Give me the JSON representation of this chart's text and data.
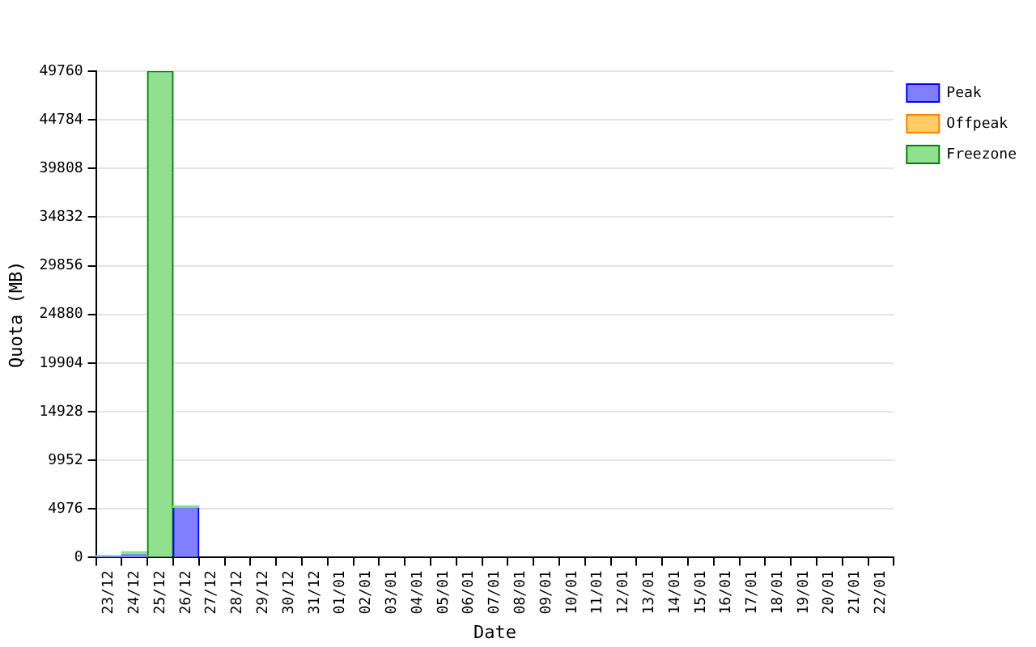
{
  "chart_data": {
    "type": "bar",
    "stacked": true,
    "xlabel": "Date",
    "ylabel": "Quota (MB)",
    "categories": [
      "23/12",
      "24/12",
      "25/12",
      "26/12",
      "27/12",
      "28/12",
      "29/12",
      "30/12",
      "31/12",
      "01/01",
      "02/01",
      "03/01",
      "04/01",
      "05/01",
      "06/01",
      "07/01",
      "08/01",
      "09/01",
      "10/01",
      "11/01",
      "12/01",
      "13/01",
      "14/01",
      "15/01",
      "16/01",
      "17/01",
      "18/01",
      "19/01",
      "20/01",
      "21/01",
      "22/01"
    ],
    "series": [
      {
        "name": "Peak",
        "color": "#8080ff",
        "values": [
          100,
          300,
          null,
          5100,
          null,
          null,
          null,
          null,
          null,
          null,
          null,
          null,
          null,
          null,
          null,
          null,
          null,
          null,
          null,
          null,
          null,
          null,
          null,
          null,
          null,
          null,
          null,
          null,
          null,
          null,
          null
        ]
      },
      {
        "name": "Offpeak",
        "color": "#ffcc66",
        "values": [
          null,
          null,
          null,
          null,
          null,
          null,
          null,
          null,
          null,
          null,
          null,
          null,
          null,
          null,
          null,
          null,
          null,
          null,
          null,
          null,
          null,
          null,
          null,
          null,
          null,
          null,
          null,
          null,
          null,
          null,
          null
        ]
      },
      {
        "name": "Freezone",
        "color": "#90e090",
        "values": [
          100,
          300,
          49760,
          200,
          null,
          null,
          null,
          null,
          null,
          null,
          null,
          null,
          null,
          null,
          null,
          null,
          null,
          null,
          null,
          null,
          null,
          null,
          null,
          null,
          null,
          null,
          null,
          null,
          null,
          null,
          null
        ]
      }
    ],
    "ylim": [
      0,
      49760
    ],
    "yticks": [
      0,
      4976,
      9952,
      14928,
      19904,
      24880,
      29856,
      34832,
      39808,
      44784,
      49760
    ],
    "grid": "y",
    "legend": "top right"
  }
}
